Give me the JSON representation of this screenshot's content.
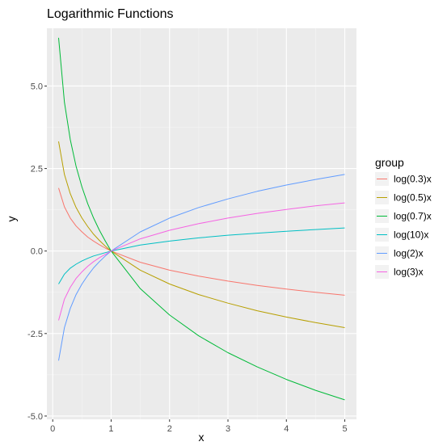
{
  "chart_data": {
    "type": "line",
    "title": "Logarithmic Functions",
    "xlabel": "x",
    "ylabel": "y",
    "xlim": [
      -0.1,
      5.2
    ],
    "ylim": [
      -5.1,
      6.75
    ],
    "x_ticks": [
      0,
      1,
      2,
      3,
      4,
      5
    ],
    "x_tick_labels": [
      "0",
      "1",
      "2",
      "3",
      "4",
      "5"
    ],
    "y_ticks": [
      -5.0,
      -2.5,
      0.0,
      2.5,
      5.0
    ],
    "y_tick_labels": [
      "-5.0",
      "-2.5",
      "0.0",
      "2.5",
      "5.0"
    ],
    "grid": true,
    "legend": {
      "title": "group",
      "placement": "right"
    },
    "x": [
      0.1,
      0.2,
      0.3,
      0.4,
      0.5,
      0.6,
      0.7,
      0.8,
      0.9,
      1.0,
      1.5,
      2.0,
      2.5,
      3.0,
      3.5,
      4.0,
      4.5,
      5.0
    ],
    "series": [
      {
        "name": "log(0.3)x",
        "color": "#F8766D",
        "values": [
          1.91,
          1.34,
          1.0,
          0.76,
          0.58,
          0.42,
          0.3,
          0.19,
          0.09,
          0.0,
          -0.34,
          -0.58,
          -0.76,
          -0.91,
          -1.04,
          -1.15,
          -1.25,
          -1.34
        ]
      },
      {
        "name": "log(0.5)x",
        "color": "#B79F00",
        "values": [
          3.32,
          2.32,
          1.74,
          1.32,
          1.0,
          0.74,
          0.51,
          0.32,
          0.15,
          0.0,
          -0.58,
          -1.0,
          -1.32,
          -1.58,
          -1.81,
          -2.0,
          -2.17,
          -2.32
        ]
      },
      {
        "name": "log(0.7)x",
        "color": "#00BA38",
        "values": [
          6.46,
          4.51,
          3.38,
          2.57,
          1.94,
          1.43,
          1.0,
          0.63,
          0.3,
          0.0,
          -1.14,
          -1.94,
          -2.57,
          -3.08,
          -3.51,
          -3.89,
          -4.22,
          -4.51
        ]
      },
      {
        "name": "log(10)x",
        "color": "#00BFC4",
        "values": [
          -1.0,
          -0.7,
          -0.52,
          -0.4,
          -0.3,
          -0.22,
          -0.15,
          -0.1,
          -0.05,
          0.0,
          0.18,
          0.3,
          0.4,
          0.48,
          0.54,
          0.6,
          0.65,
          0.7
        ]
      },
      {
        "name": "log(2)x",
        "color": "#619CFF",
        "values": [
          -3.32,
          -2.32,
          -1.74,
          -1.32,
          -1.0,
          -0.74,
          -0.51,
          -0.32,
          -0.15,
          0.0,
          0.58,
          1.0,
          1.32,
          1.58,
          1.81,
          2.0,
          2.17,
          2.32
        ]
      },
      {
        "name": "log(3)x",
        "color": "#F564E3",
        "values": [
          -2.1,
          -1.46,
          -1.1,
          -0.83,
          -0.63,
          -0.46,
          -0.32,
          -0.2,
          -0.1,
          0.0,
          0.37,
          0.63,
          0.83,
          1.0,
          1.14,
          1.26,
          1.37,
          1.46
        ]
      }
    ]
  }
}
